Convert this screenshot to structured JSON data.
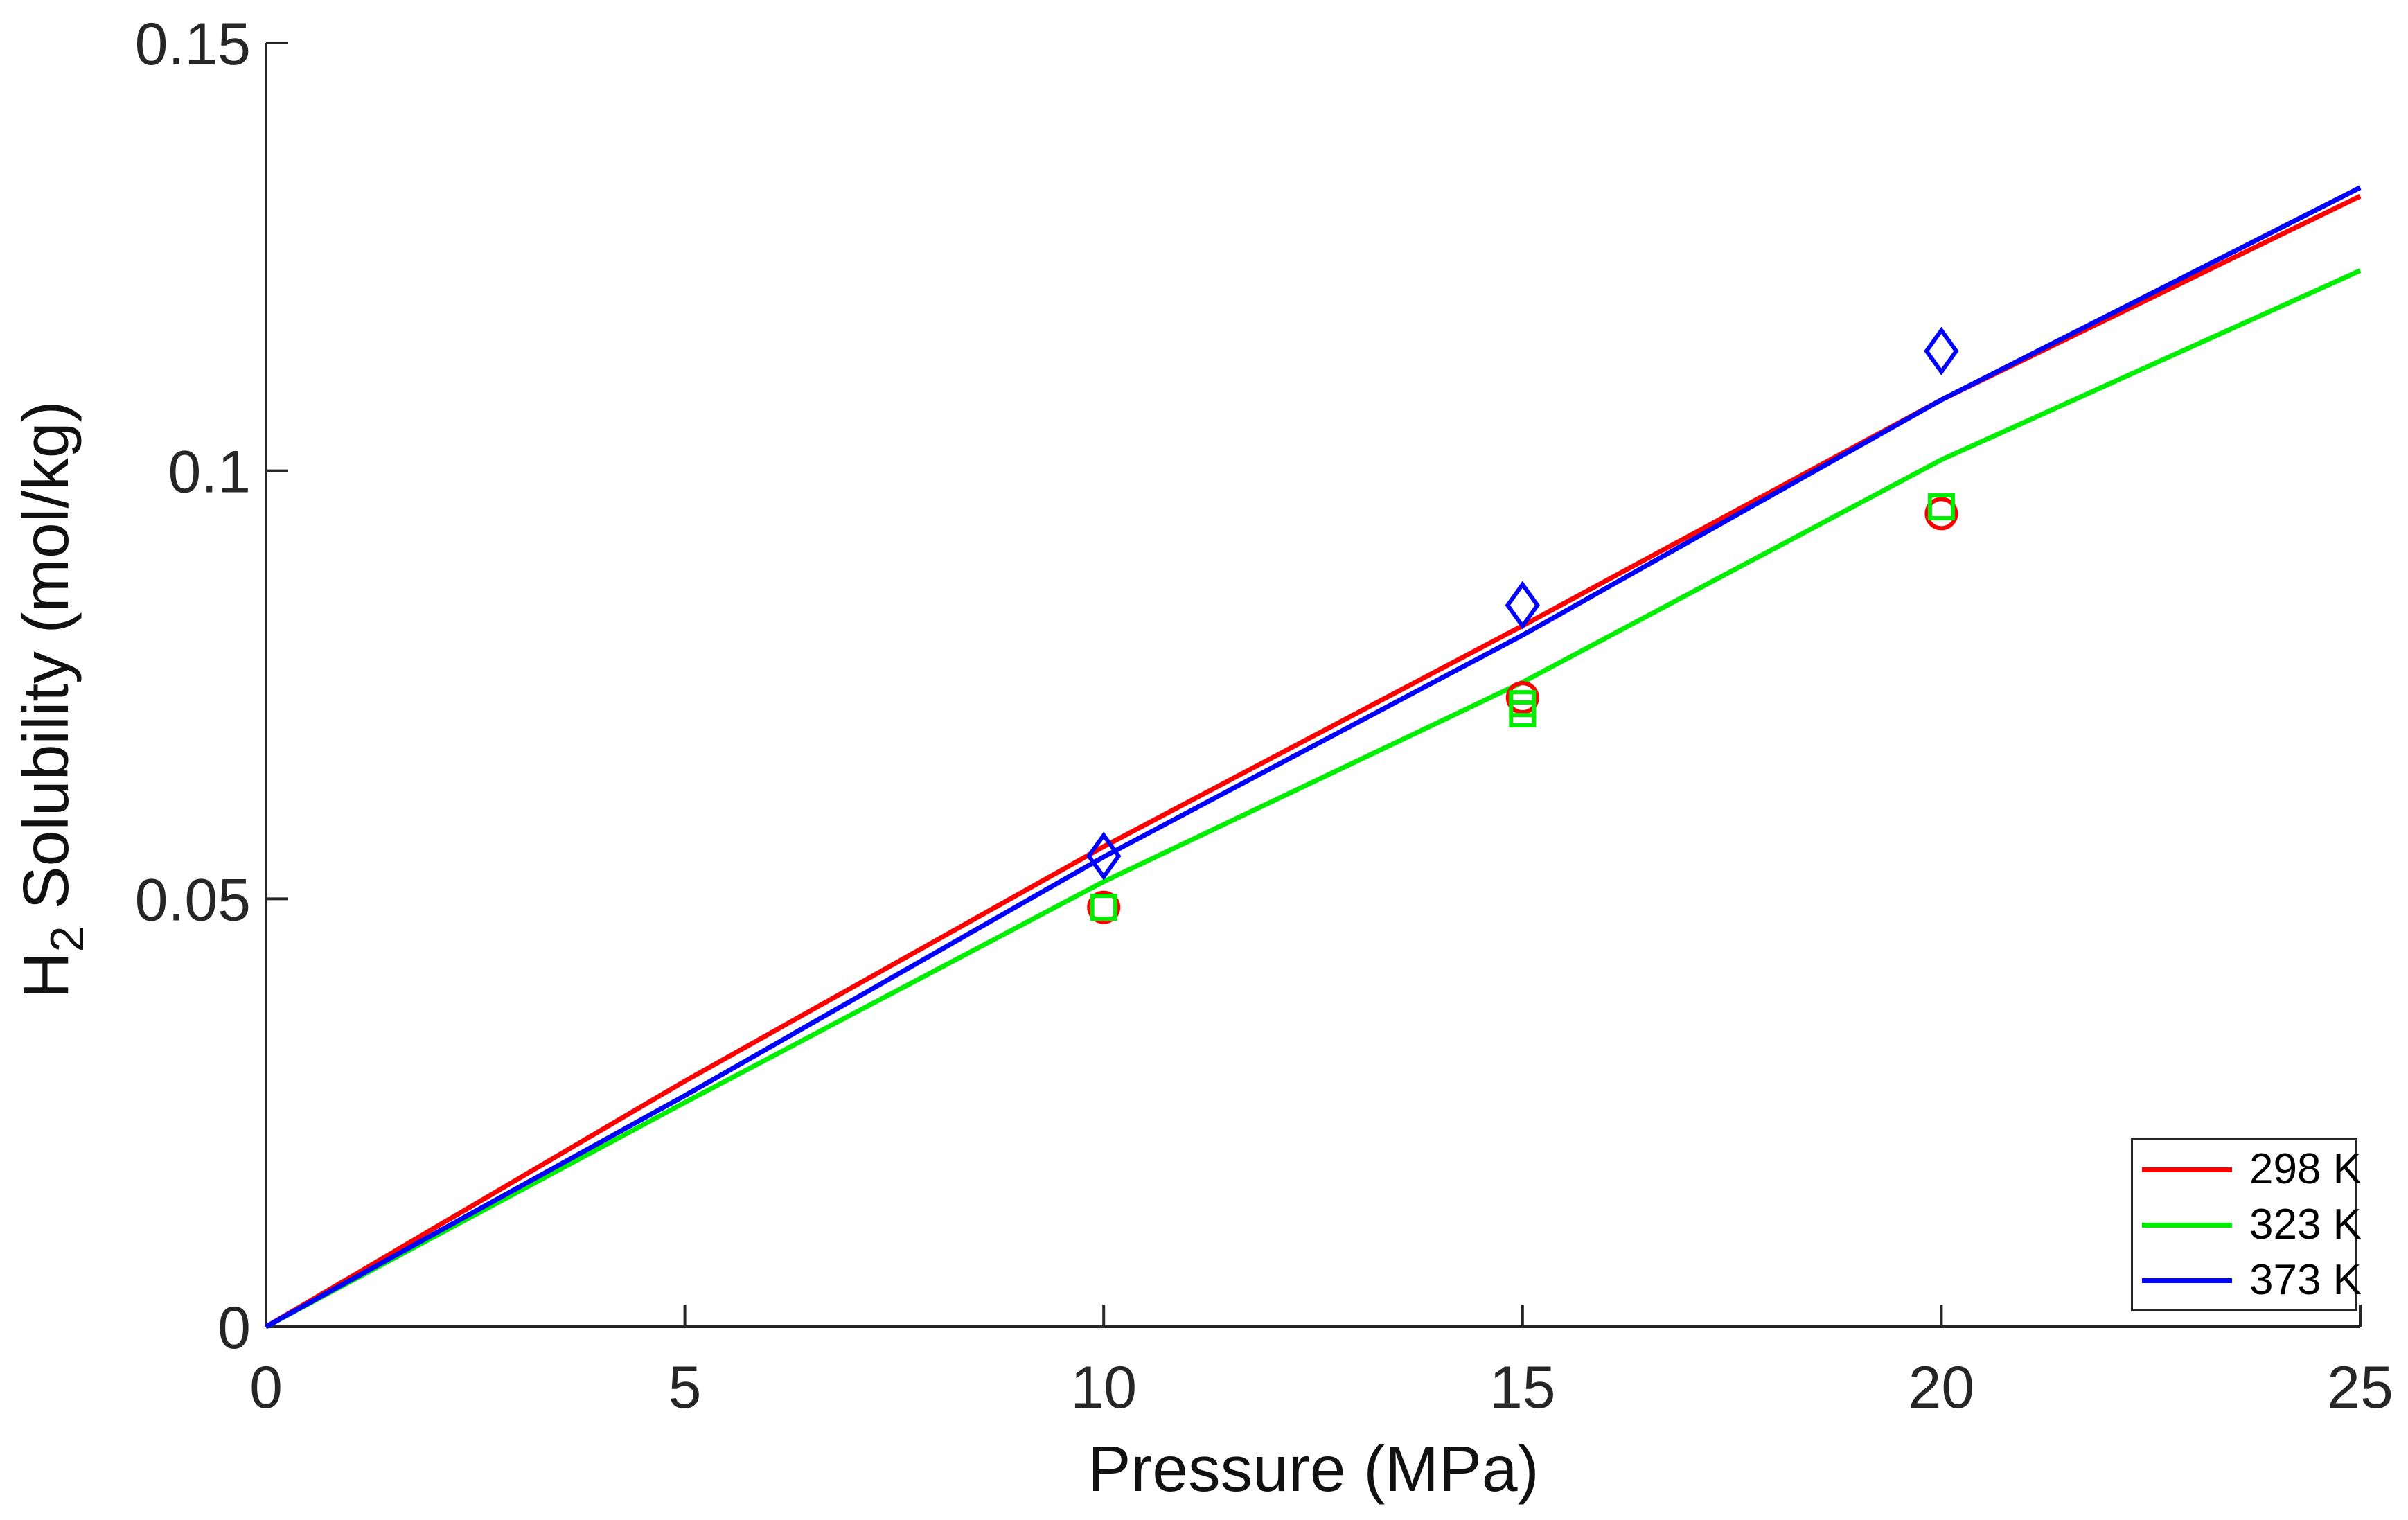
{
  "axes": {
    "xlabel": "Pressure (MPa)",
    "ylabel_prefix": "H",
    "ylabel_sub": "2",
    "ylabel_rest": "Solubility (mol/kg)",
    "axis_color": "#262626",
    "tick_label_color": "#262626",
    "x_ticks": {
      "values": [
        0,
        5,
        10,
        15,
        20,
        25
      ],
      "labels": [
        "0",
        "5",
        "10",
        "15",
        "20",
        "25"
      ]
    },
    "y_ticks": {
      "values": [
        0,
        0.05,
        0.1,
        0.15
      ],
      "labels": [
        "0",
        "0.05",
        "0.1",
        "0.15"
      ]
    },
    "xlim": [
      0,
      25
    ],
    "ylim": [
      0,
      0.15
    ],
    "grid": "off",
    "box": "off"
  },
  "legend": {
    "position": "south-east",
    "entries": [
      {
        "label": "298 K",
        "color": "#ff0000"
      },
      {
        "label": "323 K",
        "color": "#00ee00"
      },
      {
        "label": "373 K",
        "color": "#0000ff"
      }
    ]
  },
  "chart_data": {
    "type": "line",
    "title": "",
    "xlabel": "Pressure (MPa)",
    "ylabel": "H2 Solubility (mol/kg)",
    "xlim": [
      0,
      25
    ],
    "ylim": [
      0,
      0.15
    ],
    "grid": false,
    "legend_position": "south-east",
    "series": [
      {
        "name": "298 K",
        "color": "#ff0000",
        "marker": "circle",
        "fit_line": {
          "x": [
            0,
            5,
            10,
            15,
            20,
            25
          ],
          "y": [
            0,
            0.0287,
            0.0561,
            0.0819,
            0.1083,
            0.1321
          ]
        },
        "points": {
          "x": [
            10,
            15,
            20
          ],
          "y": [
            0.049,
            0.0735,
            0.095
          ]
        }
      },
      {
        "name": "323 K",
        "color": "#00ee00",
        "marker": "square",
        "fit_line": {
          "x": [
            0,
            5,
            10,
            15,
            20,
            25
          ],
          "y": [
            0,
            0.0262,
            0.052,
            0.0753,
            0.1013,
            0.1234
          ]
        },
        "points": {
          "x": [
            10,
            15,
            15,
            20
          ],
          "y": [
            0.049,
            0.0728,
            0.0716,
            0.0958
          ]
        }
      },
      {
        "name": "373 K",
        "color": "#0000ff",
        "marker": "diamond",
        "fit_line": {
          "x": [
            0,
            5,
            10,
            15,
            20,
            25
          ],
          "y": [
            0,
            0.027,
            0.0549,
            0.0808,
            0.1083,
            0.1331
          ]
        },
        "points": {
          "x": [
            10,
            15,
            20
          ],
          "y": [
            0.055,
            0.0843,
            0.114
          ]
        }
      }
    ]
  }
}
